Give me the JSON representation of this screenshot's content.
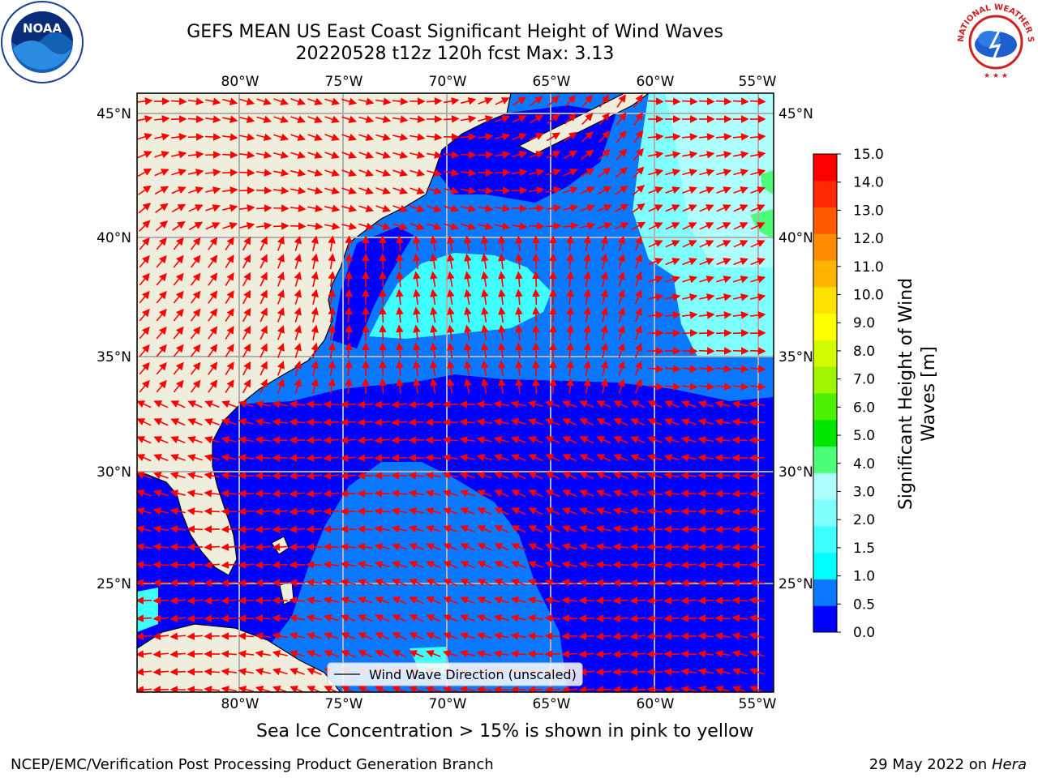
{
  "title": {
    "line1": "GEFS MEAN US East Coast Significant Height of Wind Waves",
    "line2": "20220528 t12z 120h fcst   Max: 3.13"
  },
  "map": {
    "lon_labels": [
      "80°W",
      "75°W",
      "70°W",
      "65°W",
      "60°W",
      "55°W"
    ],
    "lat_labels": [
      "45°N",
      "40°N",
      "35°N",
      "30°N",
      "25°N"
    ],
    "legend_label": "Wind Wave Direction (unscaled)",
    "arrow_color": "#ff0000",
    "land_color": "#efeddc",
    "grid_color": "#b0b0b0",
    "lon_range": [
      -85,
      -54.5
    ],
    "lat_range": [
      20.5,
      45.8
    ]
  },
  "colorbar": {
    "label_line1": "Significant Height of Wind",
    "label_line2": "Waves [m]",
    "ticks": [
      "0.0",
      "0.5",
      "1.0",
      "1.5",
      "2.0",
      "3.0",
      "4.0",
      "5.0",
      "6.0",
      "7.0",
      "8.0",
      "9.0",
      "10.0",
      "11.0",
      "12.0",
      "13.0",
      "14.0",
      "15.0"
    ],
    "colors": [
      "#0000ff",
      "#0a78ff",
      "#00ffff",
      "#40ffff",
      "#80ffff",
      "#b0ffff",
      "#4cff78",
      "#00e600",
      "#4cf000",
      "#a0f500",
      "#d2fa00",
      "#ffff00",
      "#ffe100",
      "#ffb400",
      "#ff8c00",
      "#ff5a00",
      "#ff2800",
      "#ff0000"
    ]
  },
  "ice_note": "Sea Ice Concentration > 15% is shown in pink to yellow",
  "footer": {
    "left": "NCEP/EMC/Verification Post Processing Product Generation Branch",
    "right_date": "29 May 2022 on",
    "right_machine": "Hera"
  },
  "logos": {
    "noaa_text": "NOAA",
    "nws_text": "NATIONAL WEATHER SERVICE"
  }
}
